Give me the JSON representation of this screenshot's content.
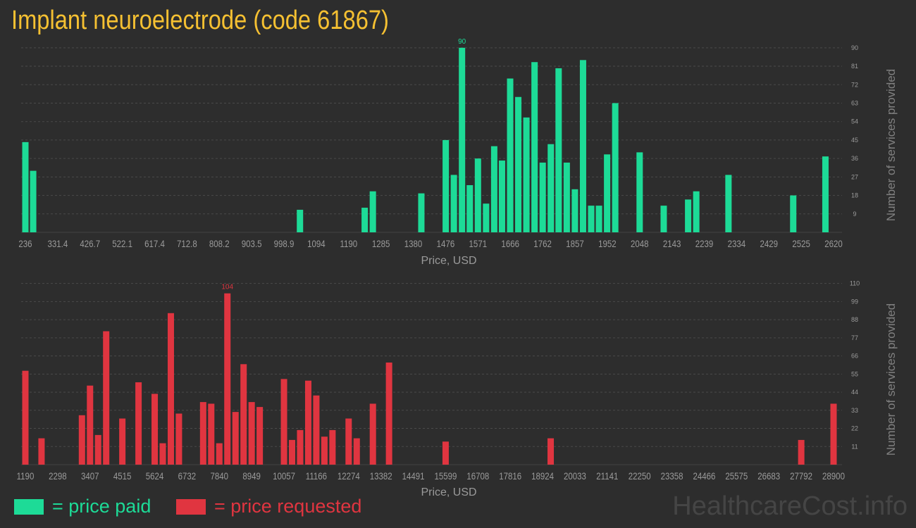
{
  "title": "Implant neuroelectrode (code 61867)",
  "colors": {
    "paid": "#1ddb97",
    "requested": "#e03540",
    "title": "#f5c032"
  },
  "legend": {
    "paid": "= price paid",
    "requested": "= price requested"
  },
  "watermark": "HealthcareCost.info",
  "chart_data": [
    {
      "type": "bar",
      "name": "price paid",
      "xlabel": "Price, USD",
      "ylabel": "Number of services provided",
      "x_ticks": [
        "236",
        "331.4",
        "426.7",
        "522.1",
        "617.4",
        "712.8",
        "808.2",
        "903.5",
        "998.9",
        "1094",
        "1190",
        "1285",
        "1380",
        "1476",
        "1571",
        "1666",
        "1762",
        "1857",
        "1952",
        "2048",
        "2143",
        "2239",
        "2334",
        "2429",
        "2525",
        "2620"
      ],
      "y_ticks": [
        9,
        18,
        27,
        36,
        45,
        54,
        63,
        72,
        81,
        90
      ],
      "ylim": [
        0,
        92
      ],
      "xlim": [
        236,
        2620
      ],
      "peak_label": "90",
      "bars": [
        {
          "x": 236,
          "y": 44
        },
        {
          "x": 259,
          "y": 30
        },
        {
          "x": 1046,
          "y": 11
        },
        {
          "x": 1237,
          "y": 12
        },
        {
          "x": 1261,
          "y": 20
        },
        {
          "x": 1404,
          "y": 19
        },
        {
          "x": 1476,
          "y": 45
        },
        {
          "x": 1500,
          "y": 28
        },
        {
          "x": 1524,
          "y": 90
        },
        {
          "x": 1547,
          "y": 23
        },
        {
          "x": 1571,
          "y": 36
        },
        {
          "x": 1595,
          "y": 14
        },
        {
          "x": 1619,
          "y": 42
        },
        {
          "x": 1642,
          "y": 35
        },
        {
          "x": 1666,
          "y": 75
        },
        {
          "x": 1690,
          "y": 66
        },
        {
          "x": 1714,
          "y": 56
        },
        {
          "x": 1738,
          "y": 83
        },
        {
          "x": 1762,
          "y": 34
        },
        {
          "x": 1786,
          "y": 43
        },
        {
          "x": 1809,
          "y": 80
        },
        {
          "x": 1833,
          "y": 34
        },
        {
          "x": 1857,
          "y": 21
        },
        {
          "x": 1881,
          "y": 84
        },
        {
          "x": 1905,
          "y": 13
        },
        {
          "x": 1928,
          "y": 13
        },
        {
          "x": 1952,
          "y": 38
        },
        {
          "x": 1976,
          "y": 63
        },
        {
          "x": 2048,
          "y": 39
        },
        {
          "x": 2119,
          "y": 13
        },
        {
          "x": 2191,
          "y": 16
        },
        {
          "x": 2215,
          "y": 20
        },
        {
          "x": 2310,
          "y": 28
        },
        {
          "x": 2501,
          "y": 18
        },
        {
          "x": 2596,
          "y": 37
        }
      ]
    },
    {
      "type": "bar",
      "name": "price requested",
      "xlabel": "Price, USD",
      "ylabel": "Number of services provided",
      "x_ticks": [
        "1190",
        "2298",
        "3407",
        "4515",
        "5624",
        "6732",
        "7840",
        "8949",
        "10057",
        "11166",
        "12274",
        "13382",
        "14491",
        "15599",
        "16708",
        "17816",
        "18924",
        "20033",
        "21141",
        "22250",
        "23358",
        "24466",
        "25575",
        "26683",
        "27792",
        "28900"
      ],
      "y_ticks": [
        11,
        22,
        33,
        44,
        55,
        66,
        77,
        88,
        99,
        110
      ],
      "ylim": [
        0,
        112
      ],
      "xlim": [
        1190,
        28900
      ],
      "peak_label": "104",
      "bars": [
        {
          "x": 1190,
          "y": 57
        },
        {
          "x": 1744,
          "y": 16
        },
        {
          "x": 3130,
          "y": 30
        },
        {
          "x": 3407,
          "y": 48
        },
        {
          "x": 3684,
          "y": 18
        },
        {
          "x": 3961,
          "y": 81
        },
        {
          "x": 4515,
          "y": 28
        },
        {
          "x": 5070,
          "y": 50
        },
        {
          "x": 5624,
          "y": 43
        },
        {
          "x": 5901,
          "y": 13
        },
        {
          "x": 6178,
          "y": 92
        },
        {
          "x": 6455,
          "y": 31
        },
        {
          "x": 7286,
          "y": 38
        },
        {
          "x": 7563,
          "y": 37
        },
        {
          "x": 7840,
          "y": 13
        },
        {
          "x": 8117,
          "y": 104
        },
        {
          "x": 8395,
          "y": 32
        },
        {
          "x": 8672,
          "y": 61
        },
        {
          "x": 8949,
          "y": 38
        },
        {
          "x": 9226,
          "y": 35
        },
        {
          "x": 10057,
          "y": 52
        },
        {
          "x": 10334,
          "y": 15
        },
        {
          "x": 10611,
          "y": 21
        },
        {
          "x": 10889,
          "y": 51
        },
        {
          "x": 11166,
          "y": 42
        },
        {
          "x": 11443,
          "y": 17
        },
        {
          "x": 11720,
          "y": 21
        },
        {
          "x": 12274,
          "y": 28
        },
        {
          "x": 12551,
          "y": 16
        },
        {
          "x": 13105,
          "y": 37
        },
        {
          "x": 13659,
          "y": 62
        },
        {
          "x": 15599,
          "y": 14
        },
        {
          "x": 19201,
          "y": 16
        },
        {
          "x": 27792,
          "y": 15
        },
        {
          "x": 28900,
          "y": 37
        }
      ]
    }
  ]
}
